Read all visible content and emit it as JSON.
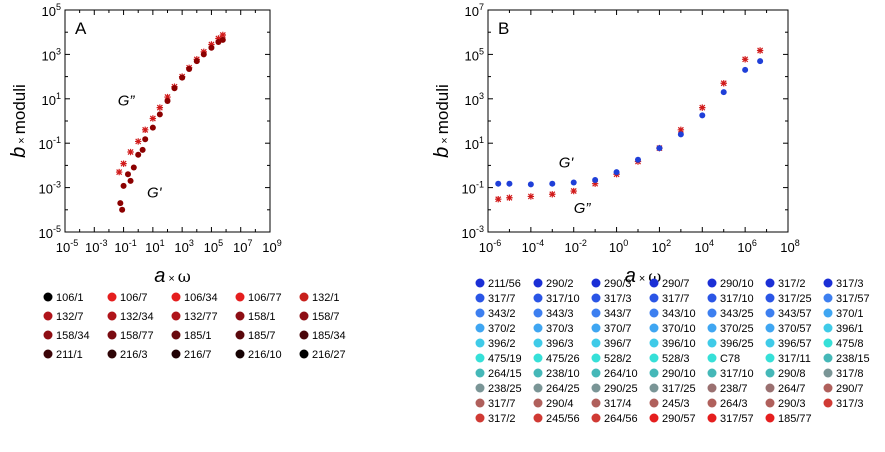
{
  "chart_data": [
    {
      "type": "scatter",
      "panel_label": "A",
      "xlabel": "a × ω",
      "ylabel": "b × moduli",
      "xscale": "log",
      "yscale": "log",
      "xlim": [
        1e-05,
        1000000000.0
      ],
      "ylim": [
        1e-05,
        100000.0
      ],
      "x_ticks": [
        "10-5",
        "10-3",
        "10-1",
        "101",
        "103",
        "105",
        "107",
        "109"
      ],
      "y_ticks": [
        "10-5",
        "10-3",
        "10-1",
        "101",
        "103",
        "105"
      ],
      "annotations": [
        {
          "text": "G”",
          "x": 0.04,
          "y": 5
        },
        {
          "text": "G'",
          "x": 4,
          "y": 0.00035
        }
      ],
      "series": [
        {
          "name": "G” (storage of loss, crosses)",
          "marker": "cross",
          "color": "#d11a1a",
          "points": [
            [
              0.05,
              0.005
            ],
            [
              0.1,
              0.012
            ],
            [
              0.3,
              0.04
            ],
            [
              1,
              0.12
            ],
            [
              3,
              0.4
            ],
            [
              10,
              1.3
            ],
            [
              30,
              4
            ],
            [
              100,
              12
            ],
            [
              300,
              35
            ],
            [
              1000,
              100
            ],
            [
              3000,
              250
            ],
            [
              10000,
              600
            ],
            [
              30000,
              1300
            ],
            [
              100000,
              2800
            ],
            [
              300000,
              5200
            ],
            [
              600000,
              7500
            ]
          ]
        },
        {
          "name": "G' (circles)",
          "marker": "circle",
          "color": "#8b0000",
          "points": [
            [
              0.06,
              0.0002
            ],
            [
              0.08,
              0.0001
            ],
            [
              0.1,
              0.0012
            ],
            [
              0.2,
              0.004
            ],
            [
              0.3,
              0.002
            ],
            [
              0.5,
              0.008
            ],
            [
              1,
              0.03
            ],
            [
              2,
              0.05
            ],
            [
              3,
              0.15
            ],
            [
              10,
              0.5
            ],
            [
              30,
              2
            ],
            [
              100,
              8
            ],
            [
              300,
              30
            ],
            [
              1000,
              90
            ],
            [
              3000,
              220
            ],
            [
              10000,
              500
            ],
            [
              30000,
              1000
            ],
            [
              100000,
              2000
            ],
            [
              300000,
              3600
            ],
            [
              600000,
              4500
            ]
          ]
        }
      ],
      "legend": [
        {
          "label": "106/1",
          "color": "#000000"
        },
        {
          "label": "106/7",
          "color": "#e51e1e"
        },
        {
          "label": "106/34",
          "color": "#e51e1e"
        },
        {
          "label": "106/77",
          "color": "#e51e1e"
        },
        {
          "label": "132/1",
          "color": "#c8201c"
        },
        {
          "label": "132/7",
          "color": "#b0141a"
        },
        {
          "label": "132/34",
          "color": "#b0141a"
        },
        {
          "label": "132/77",
          "color": "#b0141a"
        },
        {
          "label": "158/1",
          "color": "#8e0e14"
        },
        {
          "label": "158/7",
          "color": "#8e0e14"
        },
        {
          "label": "158/34",
          "color": "#8e0e14"
        },
        {
          "label": "158/77",
          "color": "#7a0b11"
        },
        {
          "label": "185/1",
          "color": "#6a0a0f"
        },
        {
          "label": "185/7",
          "color": "#5a080c"
        },
        {
          "label": "185/34",
          "color": "#4a060a"
        },
        {
          "label": "211/1",
          "color": "#3c0508"
        },
        {
          "label": "216/3",
          "color": "#2e0406"
        },
        {
          "label": "216/7",
          "color": "#220305"
        },
        {
          "label": "216/10",
          "color": "#160203"
        },
        {
          "label": "216/27",
          "color": "#000000"
        }
      ]
    },
    {
      "type": "scatter",
      "panel_label": "B",
      "xlabel": "a × ω",
      "ylabel": "b × moduli",
      "xscale": "log",
      "yscale": "log",
      "xlim": [
        1e-06,
        100000000.0
      ],
      "ylim": [
        0.001,
        10000000.0
      ],
      "x_ticks": [
        "10-6",
        "10-4",
        "10-2",
        "100",
        "102",
        "104",
        "106",
        "108"
      ],
      "y_ticks": [
        "10-3",
        "10-1",
        "101",
        "103",
        "105",
        "107"
      ],
      "annotations": [
        {
          "text": "G'",
          "x": 0.002,
          "y": 0.8
        },
        {
          "text": "G”",
          "x": 0.01,
          "y": 0.007
        }
      ],
      "series": [
        {
          "name": "G” (crosses)",
          "marker": "cross",
          "color": "#d11a1a",
          "points": [
            [
              3e-06,
              0.03
            ],
            [
              1e-05,
              0.035
            ],
            [
              0.0001,
              0.04
            ],
            [
              0.001,
              0.05
            ],
            [
              0.01,
              0.07
            ],
            [
              0.1,
              0.15
            ],
            [
              1,
              0.4
            ],
            [
              10,
              1.5
            ],
            [
              100,
              6
            ],
            [
              1000,
              40
            ],
            [
              10000,
              400
            ],
            [
              100000,
              5000
            ],
            [
              1000000,
              60000
            ],
            [
              5000000,
              150000
            ]
          ]
        },
        {
          "name": "G' (circles)",
          "marker": "circle",
          "color": "#1f3fd8",
          "points": [
            [
              3e-06,
              0.15
            ],
            [
              1e-05,
              0.15
            ],
            [
              0.0001,
              0.14
            ],
            [
              0.001,
              0.15
            ],
            [
              0.01,
              0.17
            ],
            [
              0.1,
              0.22
            ],
            [
              1,
              0.5
            ],
            [
              10,
              1.8
            ],
            [
              100,
              6
            ],
            [
              1000,
              25
            ],
            [
              10000,
              180
            ],
            [
              100000,
              2000
            ],
            [
              1000000,
              20000
            ],
            [
              5000000,
              50000
            ]
          ]
        }
      ],
      "legend": [
        {
          "label": "211/56",
          "color": "#1b2fd6"
        },
        {
          "label": "290/2",
          "color": "#1b2fd6"
        },
        {
          "label": "290/3",
          "color": "#1b2fd6"
        },
        {
          "label": "290/7",
          "color": "#1b2fd6"
        },
        {
          "label": "290/10",
          "color": "#1b2fd6"
        },
        {
          "label": "317/2",
          "color": "#1b2fd6"
        },
        {
          "label": "317/3",
          "color": "#1b2fd6"
        },
        {
          "label": "317/7",
          "color": "#2a55e6"
        },
        {
          "label": "317/10",
          "color": "#2a55e6"
        },
        {
          "label": "317/3",
          "color": "#2a55e6"
        },
        {
          "label": "317/7",
          "color": "#2a55e6"
        },
        {
          "label": "317/10",
          "color": "#2a55e6"
        },
        {
          "label": "317/25",
          "color": "#2a55e6"
        },
        {
          "label": "317/57",
          "color": "#3d7ff0"
        },
        {
          "label": "343/2",
          "color": "#3d7ff0"
        },
        {
          "label": "343/3",
          "color": "#3d7ff0"
        },
        {
          "label": "343/7",
          "color": "#3d7ff0"
        },
        {
          "label": "343/10",
          "color": "#3d7ff0"
        },
        {
          "label": "343/25",
          "color": "#3d7ff0"
        },
        {
          "label": "343/57",
          "color": "#3d7ff0"
        },
        {
          "label": "370/1",
          "color": "#3fa6f2"
        },
        {
          "label": "370/2",
          "color": "#3fa6f2"
        },
        {
          "label": "370/3",
          "color": "#3fa6f2"
        },
        {
          "label": "370/7",
          "color": "#3fa6f2"
        },
        {
          "label": "370/10",
          "color": "#3fa6f2"
        },
        {
          "label": "370/25",
          "color": "#3fa6f2"
        },
        {
          "label": "370/57",
          "color": "#3fa6f2"
        },
        {
          "label": "396/1",
          "color": "#3fcbe8"
        },
        {
          "label": "396/2",
          "color": "#3fcbe8"
        },
        {
          "label": "396/3",
          "color": "#3fcbe8"
        },
        {
          "label": "396/7",
          "color": "#3fcbe8"
        },
        {
          "label": "396/10",
          "color": "#3fcbe8"
        },
        {
          "label": "396/25",
          "color": "#3fcbe8"
        },
        {
          "label": "396/57",
          "color": "#3fcbe8"
        },
        {
          "label": "475/8",
          "color": "#36e0d8"
        },
        {
          "label": "475/19",
          "color": "#36e0d8"
        },
        {
          "label": "475/26",
          "color": "#36e0d8"
        },
        {
          "label": "528/2",
          "color": "#36e0d8"
        },
        {
          "label": "528/3",
          "color": "#36e0d8"
        },
        {
          "label": "C78",
          "color": "#36e0d8"
        },
        {
          "label": "317/11",
          "color": "#36e0d8"
        },
        {
          "label": "238/15",
          "color": "#45b8b8"
        },
        {
          "label": "264/15",
          "color": "#45b8b8"
        },
        {
          "label": "238/10",
          "color": "#45b8b8"
        },
        {
          "label": "264/10",
          "color": "#45b8b8"
        },
        {
          "label": "290/10",
          "color": "#45b8b8"
        },
        {
          "label": "317/10",
          "color": "#45b8b8"
        },
        {
          "label": "290/8",
          "color": "#45b8b8"
        },
        {
          "label": "317/8",
          "color": "#7a9596"
        },
        {
          "label": "238/25",
          "color": "#7a9596"
        },
        {
          "label": "264/25",
          "color": "#7a9596"
        },
        {
          "label": "290/25",
          "color": "#7a9596"
        },
        {
          "label": "317/25",
          "color": "#7a9596"
        },
        {
          "label": "238/7",
          "color": "#9a7070"
        },
        {
          "label": "264/7",
          "color": "#9a7070"
        },
        {
          "label": "290/7",
          "color": "#b0605c"
        },
        {
          "label": "317/7",
          "color": "#b0605c"
        },
        {
          "label": "290/4",
          "color": "#b0605c"
        },
        {
          "label": "317/4",
          "color": "#b0605c"
        },
        {
          "label": "245/3",
          "color": "#b0605c"
        },
        {
          "label": "264/3",
          "color": "#b0605c"
        },
        {
          "label": "290/3",
          "color": "#b0605c"
        },
        {
          "label": "317/3",
          "color": "#d03a34"
        },
        {
          "label": "317/2",
          "color": "#d03a34"
        },
        {
          "label": "245/56",
          "color": "#d03a34"
        },
        {
          "label": "264/56",
          "color": "#d03a34"
        },
        {
          "label": "290/57",
          "color": "#e51e1e"
        },
        {
          "label": "317/57",
          "color": "#e51e1e"
        },
        {
          "label": "185/77",
          "color": "#e51e1e"
        }
      ]
    }
  ]
}
